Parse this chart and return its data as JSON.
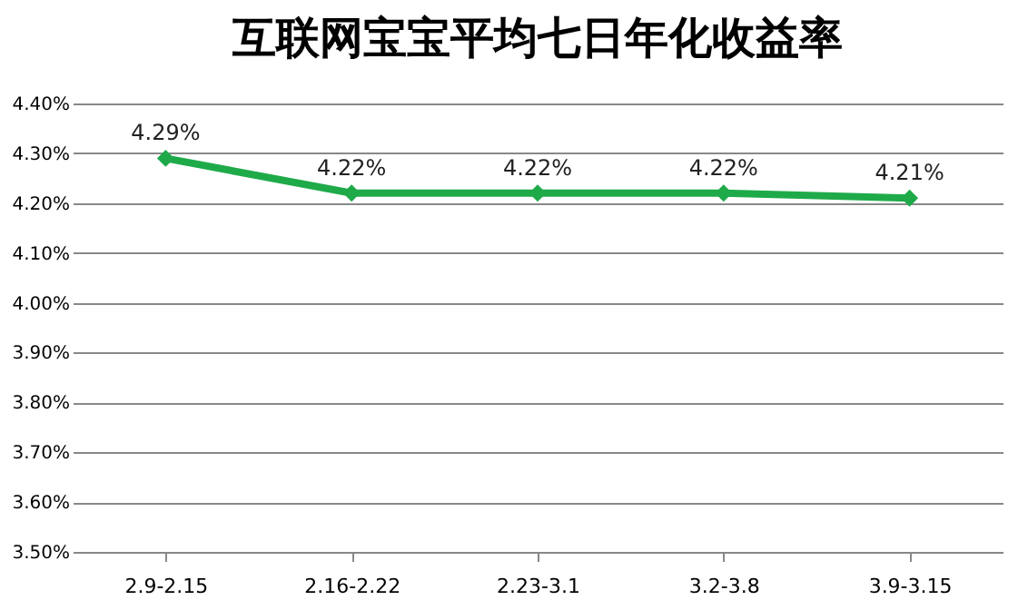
{
  "chart_data": {
    "type": "line",
    "title": "互联网宝宝平均七日年化收益率",
    "categories": [
      "2.9-2.15",
      "2.16-2.22",
      "2.23-3.1",
      "3.2-3.8",
      "3.9-3.15"
    ],
    "series": [
      {
        "color": "#1faa4a",
        "values": [
          4.29,
          4.22,
          4.22,
          4.22,
          4.21
        ],
        "value_labels": [
          "4.29%",
          "4.22%",
          "4.22%",
          "4.22%",
          "4.21%"
        ]
      }
    ],
    "ylim": [
      3.5,
      4.4
    ],
    "yticks": [
      {
        "value": 3.5,
        "label": "3.50%"
      },
      {
        "value": 3.6,
        "label": "3.60%"
      },
      {
        "value": 3.7,
        "label": "3.70%"
      },
      {
        "value": 3.8,
        "label": "3.80%"
      },
      {
        "value": 3.9,
        "label": "3.90%"
      },
      {
        "value": 4.0,
        "label": "4.00%"
      },
      {
        "value": 4.1,
        "label": "4.10%"
      },
      {
        "value": 4.2,
        "label": "4.20%"
      },
      {
        "value": 4.3,
        "label": "4.30%"
      },
      {
        "value": 4.4,
        "label": "4.40%"
      }
    ],
    "grid": "y",
    "marker": "diamond",
    "line_style": "solid"
  }
}
